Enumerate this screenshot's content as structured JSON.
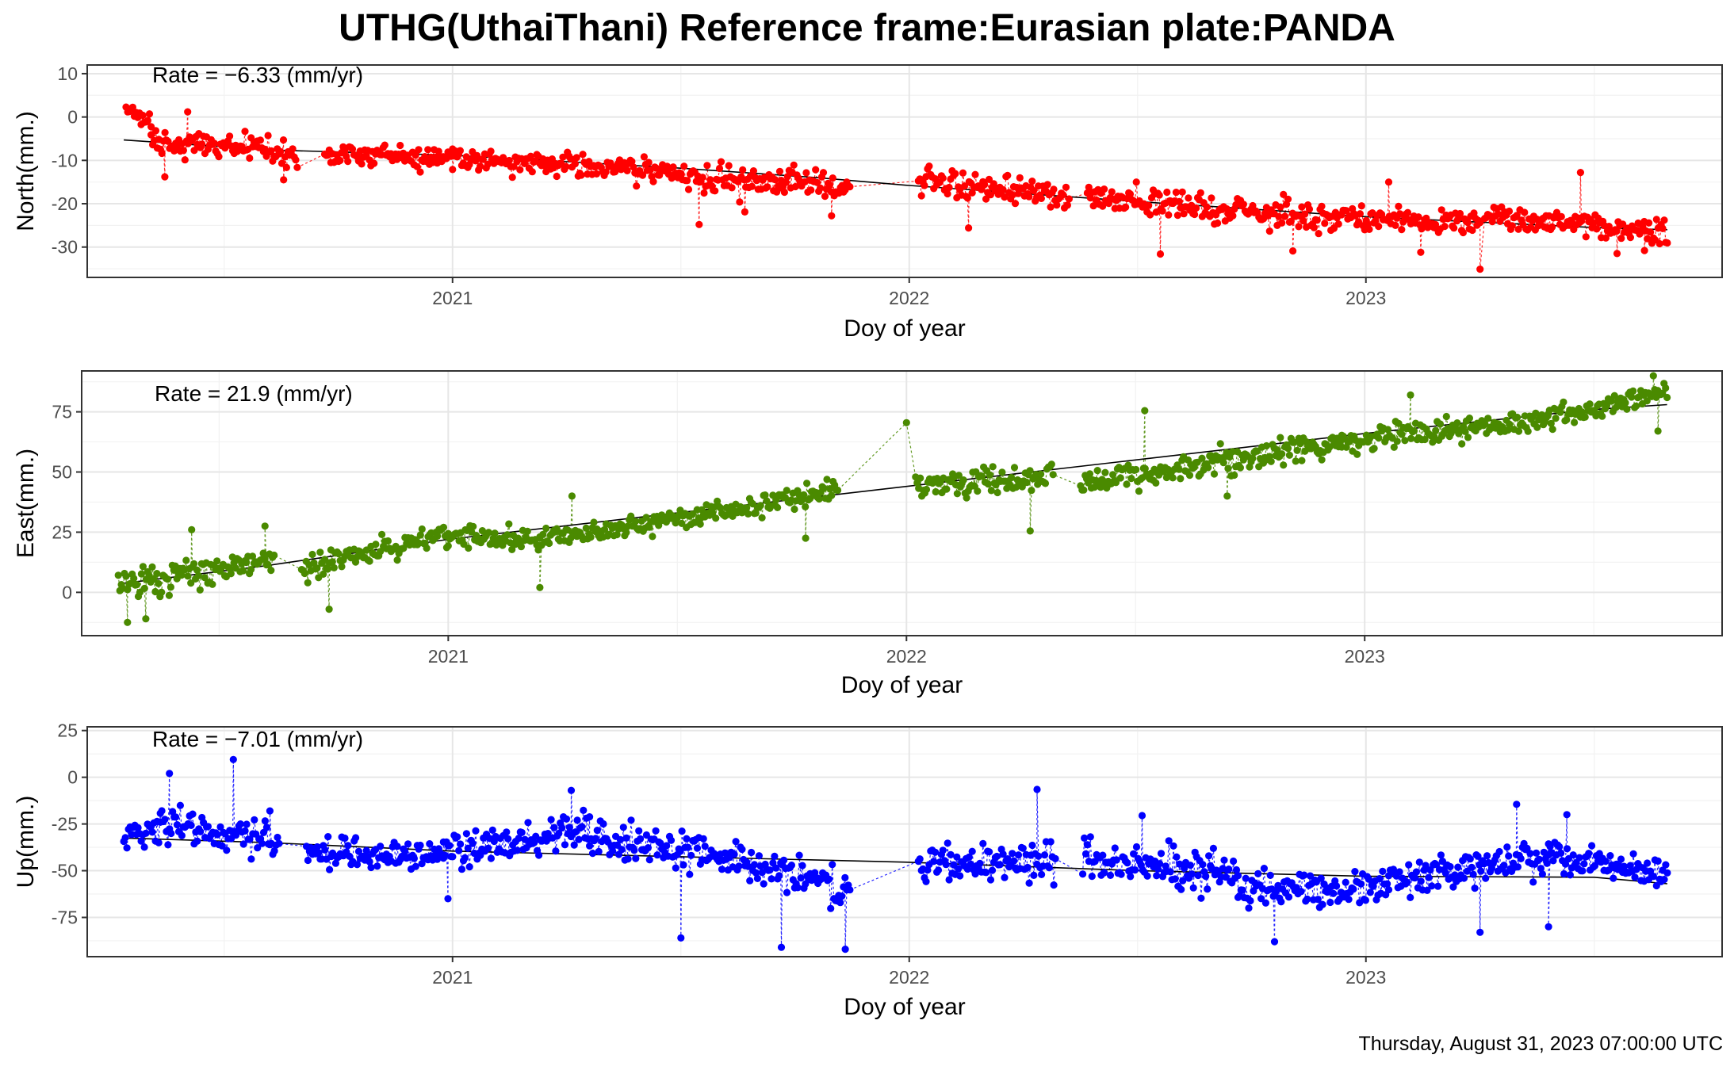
{
  "title": "UTHG(UthaiThani) Reference frame:Eurasian plate:PANDA",
  "timestamp": "Thursday, August 31, 2023 07:00:00 UTC",
  "colors": {
    "north": "#ff0000",
    "east": "#4a8a00",
    "up": "#0000ff",
    "trend": "#000000"
  },
  "chart_data": [
    {
      "type": "scatter",
      "xlabel": "Doy of year",
      "ylabel": "North(mm.)",
      "annotation": "Rate = −6.33 (mm/yr)",
      "rate_mm_per_yr": -6.33,
      "x_range": [
        2020.2,
        2023.78
      ],
      "ylim": [
        -37,
        12
      ],
      "y_ticks": [
        10,
        0,
        -10,
        -20,
        -30
      ],
      "x_ticks": [
        2021,
        2022,
        2023
      ],
      "x_tick_labels": [
        "2021",
        "2022",
        "2023"
      ],
      "grid": true,
      "series_color": "north",
      "trend": [
        [
          2020.28,
          -5.3
        ],
        [
          2020.6,
          -7.6
        ],
        [
          2021.0,
          -8.8
        ],
        [
          2021.5,
          -11.8
        ],
        [
          2021.8,
          -14.0
        ],
        [
          2022.0,
          -15.8
        ],
        [
          2022.5,
          -19.5
        ],
        [
          2023.0,
          -23.0
        ],
        [
          2023.5,
          -25.5
        ],
        [
          2023.66,
          -26.0
        ]
      ],
      "segments": [
        {
          "t0": 2020.285,
          "t1": 2020.34,
          "v0": 2.0,
          "v1": -1.5,
          "noise": 1.8
        },
        {
          "t0": 2020.34,
          "t1": 2020.66,
          "v0": -5.8,
          "v1": -8.0,
          "noise": 2.5
        },
        {
          "t0": 2020.72,
          "t1": 2021.0,
          "v0": -8.5,
          "v1": -9.2,
          "noise": 2.0
        },
        {
          "t0": 2021.0,
          "t1": 2021.5,
          "v0": -9.5,
          "v1": -12.5,
          "noise": 2.2
        },
        {
          "t0": 2021.5,
          "t1": 2021.72,
          "v0": -13.5,
          "v1": -15.5,
          "noise": 2.6
        },
        {
          "t0": 2021.72,
          "t1": 2021.87,
          "v0": -14.5,
          "v1": -16.5,
          "noise": 2.6
        },
        {
          "t0": 2022.02,
          "t1": 2022.35,
          "v0": -14.5,
          "v1": -18.5,
          "noise": 2.6
        },
        {
          "t0": 2022.39,
          "t1": 2022.93,
          "v0": -18.5,
          "v1": -24.0,
          "noise": 2.8
        },
        {
          "t0": 2022.93,
          "t1": 2023.25,
          "v0": -23.0,
          "v1": -24.5,
          "noise": 2.4
        },
        {
          "t0": 2023.26,
          "t1": 2023.66,
          "v0": -22.5,
          "v1": -26.5,
          "noise": 2.6
        }
      ],
      "outliers": [
        [
          2020.37,
          -13.8
        ],
        [
          2020.42,
          1.2
        ],
        [
          2020.63,
          -14.5
        ],
        [
          2021.54,
          -24.8
        ],
        [
          2021.64,
          -21.9
        ],
        [
          2021.83,
          -22.8
        ],
        [
          2022.13,
          -25.6
        ],
        [
          2022.55,
          -31.6
        ],
        [
          2022.84,
          -30.9
        ],
        [
          2023.05,
          -15.0
        ],
        [
          2023.12,
          -31.2
        ],
        [
          2023.25,
          -35.1
        ],
        [
          2023.47,
          -12.8
        ],
        [
          2023.55,
          -31.5
        ],
        [
          2023.61,
          -30.8
        ]
      ]
    },
    {
      "type": "scatter",
      "xlabel": "Doy of year",
      "ylabel": "East(mm.)",
      "annotation": "Rate = 21.9 (mm/yr)",
      "rate_mm_per_yr": 21.9,
      "x_range": [
        2020.2,
        2023.78
      ],
      "ylim": [
        -18,
        92
      ],
      "y_ticks": [
        75,
        50,
        25,
        0
      ],
      "x_ticks": [
        2021,
        2022,
        2023
      ],
      "x_tick_labels": [
        "2021",
        "2022",
        "2023"
      ],
      "grid": true,
      "series_color": "east",
      "trend": [
        [
          2020.28,
          3.5
        ],
        [
          2020.6,
          11.0
        ],
        [
          2021.0,
          22.0
        ],
        [
          2021.5,
          33.0
        ],
        [
          2022.0,
          44.0
        ],
        [
          2022.5,
          55.0
        ],
        [
          2023.0,
          66.0
        ],
        [
          2023.5,
          76.0
        ],
        [
          2023.66,
          78.0
        ]
      ],
      "segments": [
        {
          "t0": 2020.28,
          "t1": 2020.62,
          "v0": 2.0,
          "v1": 14.0,
          "noise": 5.0
        },
        {
          "t0": 2020.68,
          "t1": 2021.0,
          "v0": 10.0,
          "v1": 24.0,
          "noise": 4.5
        },
        {
          "t0": 2021.0,
          "t1": 2021.2,
          "v0": 24.0,
          "v1": 20.0,
          "noise": 4.0
        },
        {
          "t0": 2021.2,
          "t1": 2021.55,
          "v0": 22.0,
          "v1": 32.0,
          "noise": 4.0
        },
        {
          "t0": 2021.55,
          "t1": 2021.85,
          "v0": 32.0,
          "v1": 42.0,
          "noise": 4.0
        },
        {
          "t0": 2022.02,
          "t1": 2022.32,
          "v0": 44.0,
          "v1": 48.0,
          "noise": 5.0
        },
        {
          "t0": 2022.38,
          "t1": 2022.95,
          "v0": 45.0,
          "v1": 62.0,
          "noise": 4.5
        },
        {
          "t0": 2022.95,
          "t1": 2023.4,
          "v0": 62.0,
          "v1": 72.0,
          "noise": 4.0
        },
        {
          "t0": 2023.4,
          "t1": 2023.66,
          "v0": 72.0,
          "v1": 84.0,
          "noise": 3.5
        }
      ],
      "outliers": [
        [
          2020.3,
          -12.5
        ],
        [
          2020.34,
          -11.0
        ],
        [
          2020.44,
          26.0
        ],
        [
          2020.6,
          27.5
        ],
        [
          2020.74,
          -7.0
        ],
        [
          2021.2,
          2.0
        ],
        [
          2021.27,
          40.0
        ],
        [
          2021.78,
          22.5
        ],
        [
          2022.0,
          70.5
        ],
        [
          2022.27,
          25.5
        ],
        [
          2022.52,
          75.5
        ],
        [
          2022.7,
          40.0
        ],
        [
          2023.1,
          82.0
        ],
        [
          2023.63,
          90.0
        ],
        [
          2023.64,
          67.0
        ]
      ]
    },
    {
      "type": "scatter",
      "xlabel": "Doy of year",
      "ylabel": "Up(mm.)",
      "annotation": "Rate = −7.01 (mm/yr)",
      "rate_mm_per_yr": -7.01,
      "x_range": [
        2020.2,
        2023.78
      ],
      "ylim": [
        -96,
        27
      ],
      "y_ticks": [
        25,
        0,
        -25,
        -50,
        -75
      ],
      "x_ticks": [
        2021,
        2022,
        2023
      ],
      "x_tick_labels": [
        "2021",
        "2022",
        "2023"
      ],
      "grid": true,
      "series_color": "up",
      "trend": [
        [
          2020.28,
          -32.5
        ],
        [
          2020.6,
          -35.0
        ],
        [
          2021.0,
          -39.5
        ],
        [
          2021.5,
          -42.5
        ],
        [
          2022.0,
          -45.5
        ],
        [
          2022.5,
          -50.0
        ],
        [
          2023.0,
          -53.0
        ],
        [
          2023.5,
          -53.5
        ],
        [
          2023.66,
          -57.0
        ]
      ],
      "segments": [
        {
          "t0": 2020.28,
          "t1": 2020.36,
          "v0": -32.0,
          "v1": -28.0,
          "noise": 8.0
        },
        {
          "t0": 2020.36,
          "t1": 2020.62,
          "v0": -24.0,
          "v1": -35.0,
          "noise": 8.0
        },
        {
          "t0": 2020.68,
          "t1": 2020.98,
          "v0": -40.0,
          "v1": -42.0,
          "noise": 7.0
        },
        {
          "t0": 2020.98,
          "t1": 2021.3,
          "v0": -40.0,
          "v1": -28.0,
          "noise": 8.0
        },
        {
          "t0": 2021.3,
          "t1": 2021.6,
          "v0": -32.0,
          "v1": -42.0,
          "noise": 8.0
        },
        {
          "t0": 2021.6,
          "t1": 2021.8,
          "v0": -45.0,
          "v1": -55.0,
          "noise": 8.0
        },
        {
          "t0": 2021.8,
          "t1": 2021.87,
          "v0": -58.0,
          "v1": -60.0,
          "noise": 8.0
        },
        {
          "t0": 2022.02,
          "t1": 2022.32,
          "v0": -48.0,
          "v1": -44.0,
          "noise": 9.0
        },
        {
          "t0": 2022.38,
          "t1": 2022.72,
          "v0": -44.0,
          "v1": -52.0,
          "noise": 9.0
        },
        {
          "t0": 2022.72,
          "t1": 2023.05,
          "v0": -60.0,
          "v1": -60.0,
          "noise": 8.0
        },
        {
          "t0": 2023.05,
          "t1": 2023.4,
          "v0": -56.0,
          "v1": -44.0,
          "noise": 8.0
        },
        {
          "t0": 2023.4,
          "t1": 2023.66,
          "v0": -42.0,
          "v1": -52.0,
          "noise": 7.0
        }
      ],
      "outliers": [
        [
          2020.38,
          2.0
        ],
        [
          2020.52,
          9.5
        ],
        [
          2020.6,
          -18.0
        ],
        [
          2020.99,
          -65.0
        ],
        [
          2021.26,
          -7.0
        ],
        [
          2021.5,
          -86.0
        ],
        [
          2021.72,
          -91.0
        ],
        [
          2021.86,
          -92.0
        ],
        [
          2022.28,
          -6.5
        ],
        [
          2022.51,
          -20.5
        ],
        [
          2022.8,
          -88.0
        ],
        [
          2023.25,
          -83.0
        ],
        [
          2023.33,
          -14.5
        ],
        [
          2023.4,
          -80.0
        ],
        [
          2023.44,
          -20.0
        ]
      ]
    }
  ]
}
